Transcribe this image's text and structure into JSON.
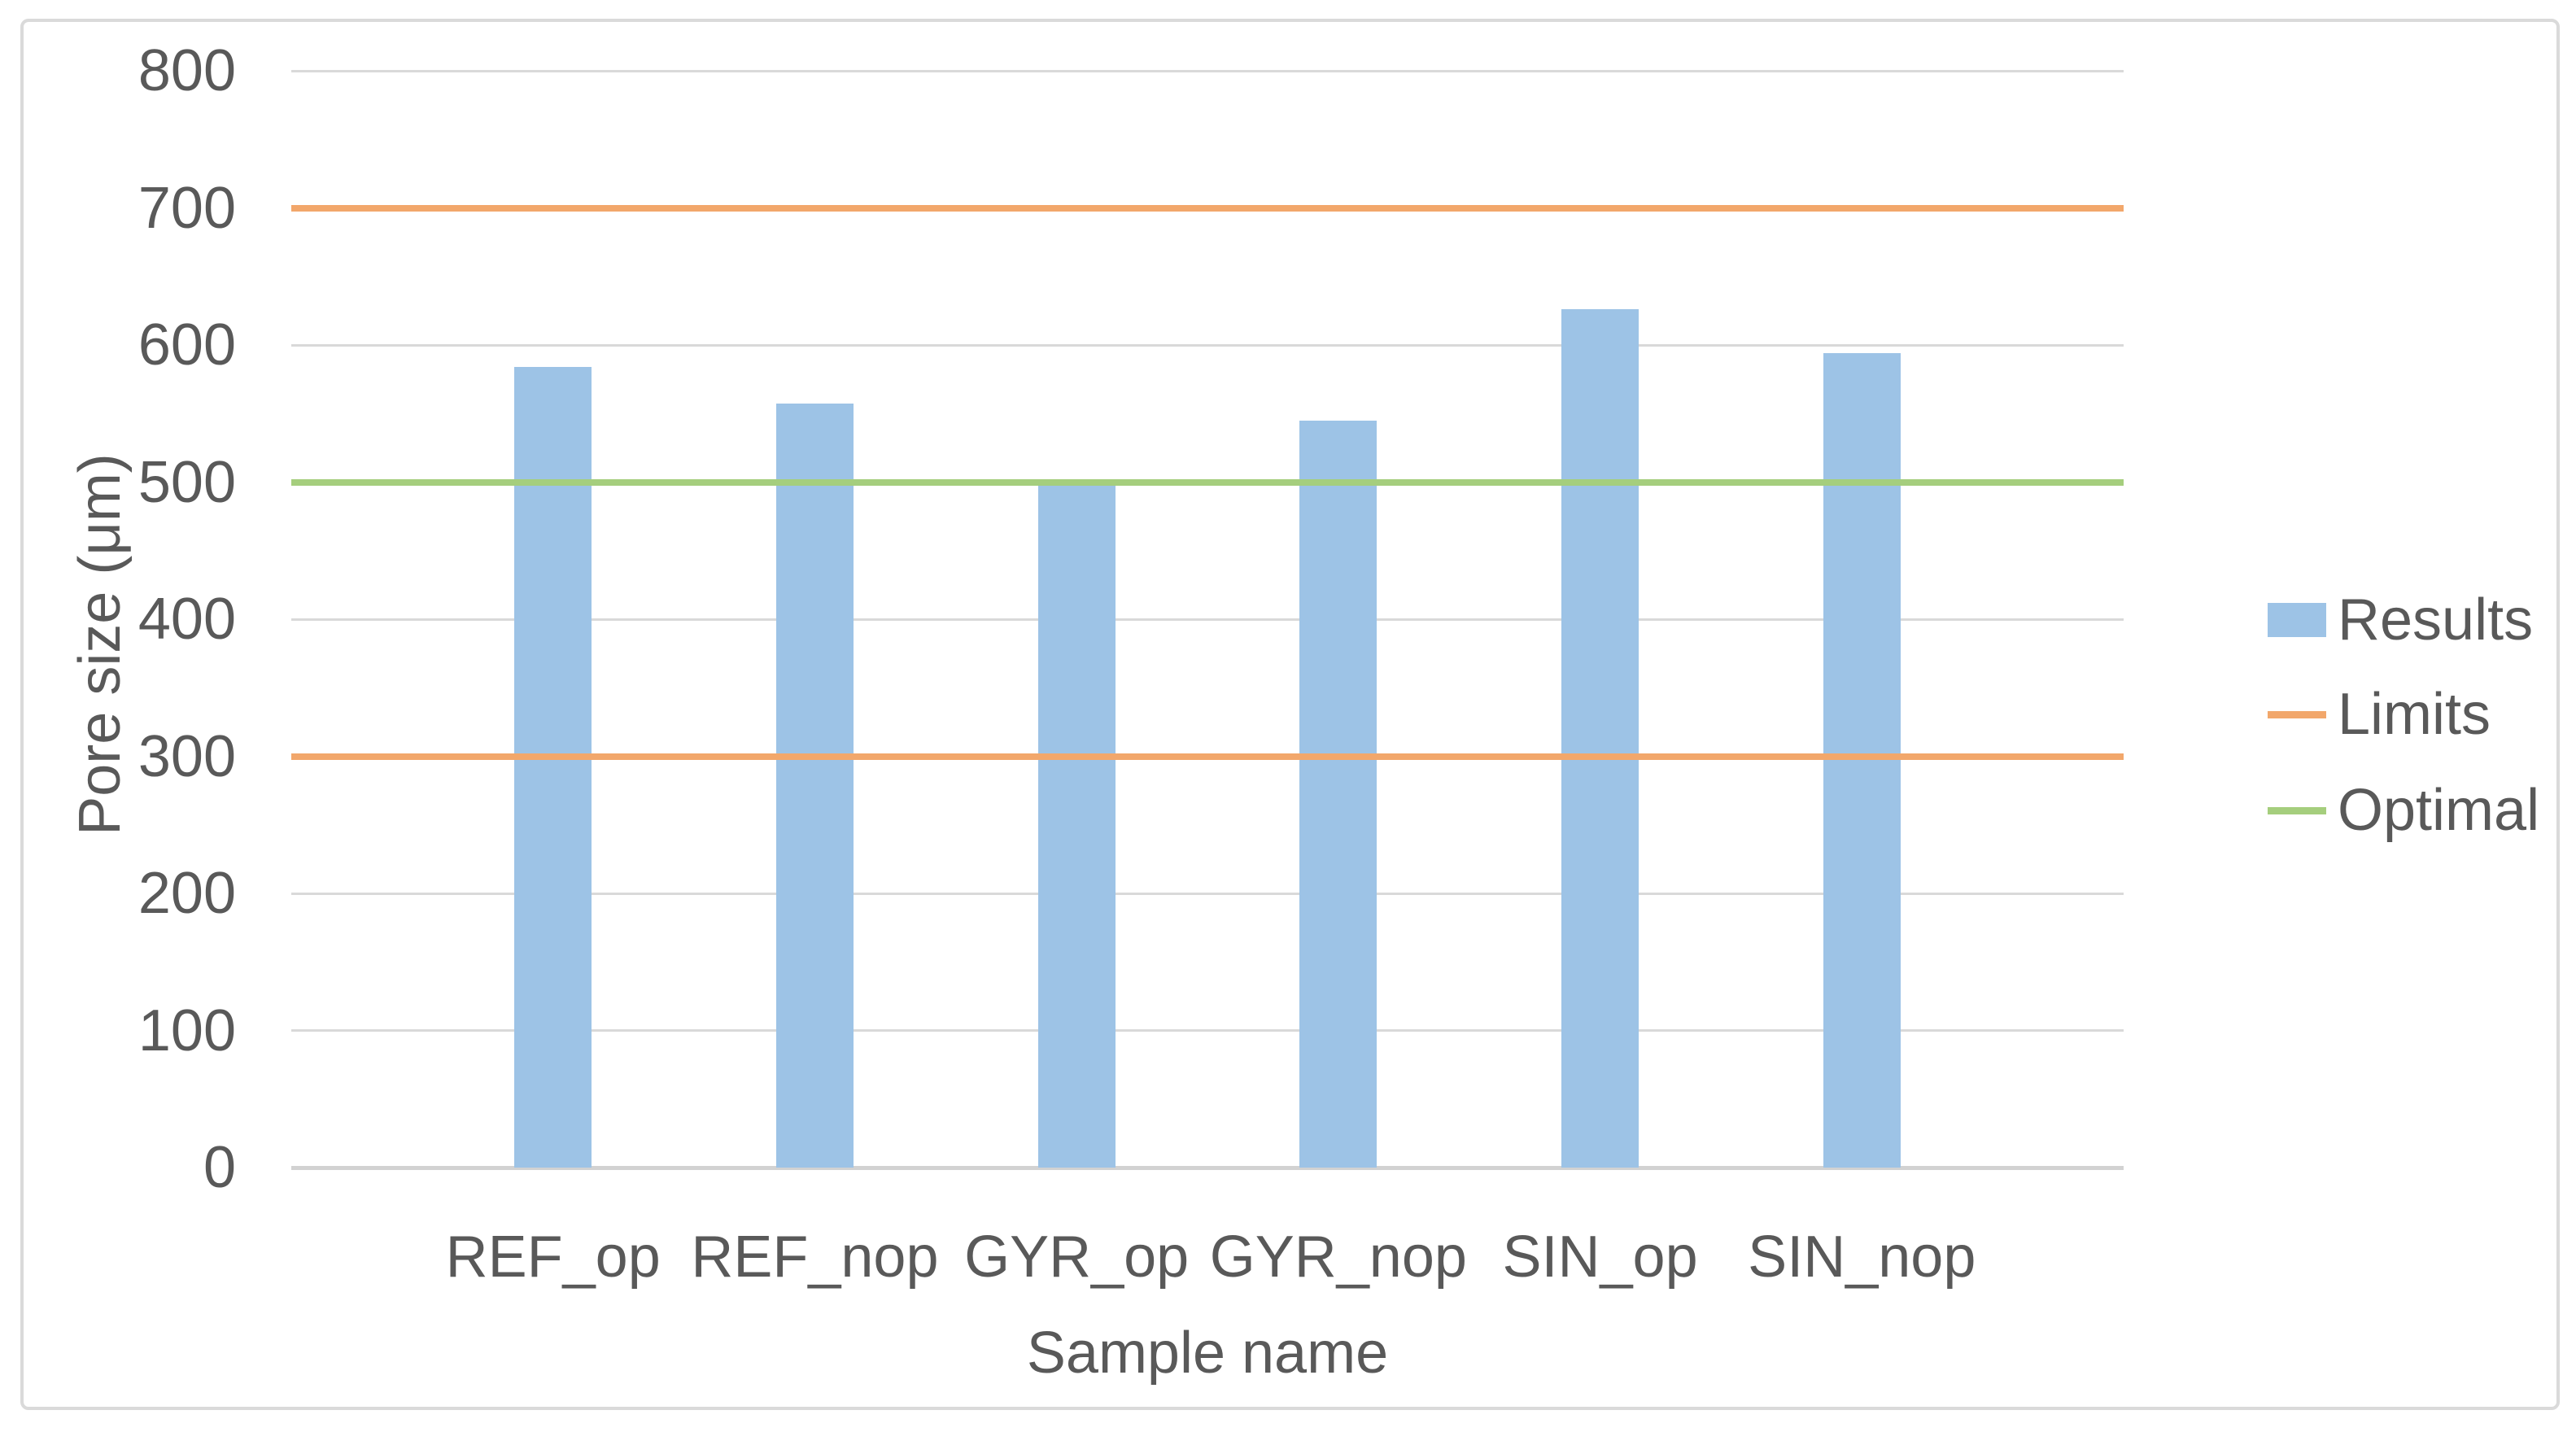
{
  "figure": {
    "background": "#FFFFFF",
    "border_color": "#DADADA"
  },
  "chart_data": {
    "type": "bar",
    "title": "",
    "xlabel": "Sample name",
    "ylabel": "Pore size (μm)",
    "categories": [
      "REF_op",
      "REF_nop",
      "GYR_op",
      "GYR_nop",
      "SIN_op",
      "SIN_nop"
    ],
    "series": [
      {
        "name": "Results",
        "type": "bar",
        "color": "#9DC3E6",
        "values": [
          584,
          557,
          498,
          545,
          626,
          594
        ]
      },
      {
        "name": "Limits",
        "type": "hline",
        "color": "#F2A76B",
        "values": [
          700,
          300
        ]
      },
      {
        "name": "Optimal",
        "type": "hline",
        "color": "#A5CE7D",
        "values": [
          500
        ]
      }
    ],
    "ylim": [
      0,
      800
    ],
    "yticks": [
      800,
      700,
      600,
      500,
      400,
      300,
      200,
      100,
      0
    ],
    "grid": true,
    "gridline_color": "#D9D9D9",
    "text_color": "#595959",
    "legend_position": "right",
    "legend": [
      {
        "label": "Results",
        "swatch": "rect",
        "color": "#9DC3E6"
      },
      {
        "label": "Limits",
        "swatch": "line",
        "color": "#F2A76B"
      },
      {
        "label": "Optimal",
        "swatch": "line",
        "color": "#A5CE7D"
      }
    ]
  }
}
